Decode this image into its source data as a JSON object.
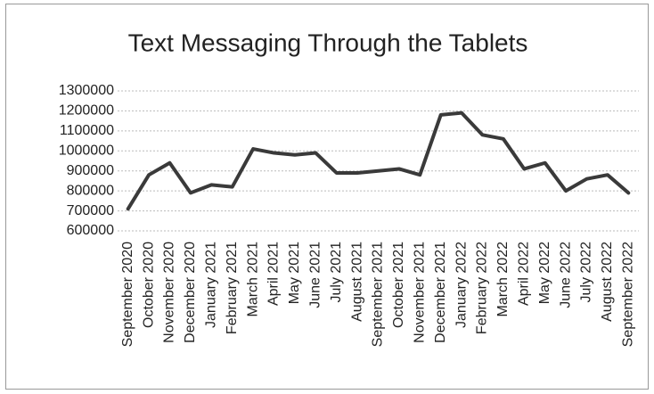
{
  "chart_data": {
    "type": "line",
    "title": "Text Messaging Through the Tablets",
    "categories": [
      "September 2020",
      "October 2020",
      "November 2020",
      "December 2020",
      "January 2021",
      "February 2021",
      "March 2021",
      "April 2021",
      "May 2021",
      "June 2021",
      "July 2021",
      "August 2021",
      "September 2021",
      "October 2021",
      "November 2021",
      "December 2021",
      "January 2022",
      "February 2022",
      "March 2022",
      "April 2022",
      "May 2022",
      "June 2022",
      "July 2022",
      "August 2022",
      "September 2022"
    ],
    "values": [
      710000,
      880000,
      940000,
      790000,
      830000,
      820000,
      1010000,
      990000,
      980000,
      990000,
      890000,
      890000,
      900000,
      910000,
      880000,
      1180000,
      1190000,
      1080000,
      1060000,
      910000,
      940000,
      800000,
      860000,
      880000,
      790000
    ],
    "color": "#3a3a3a",
    "ylim": [
      600000,
      1300000
    ],
    "yticks": [
      600000,
      700000,
      800000,
      900000,
      1000000,
      1100000,
      1200000,
      1300000
    ],
    "grid": true
  }
}
